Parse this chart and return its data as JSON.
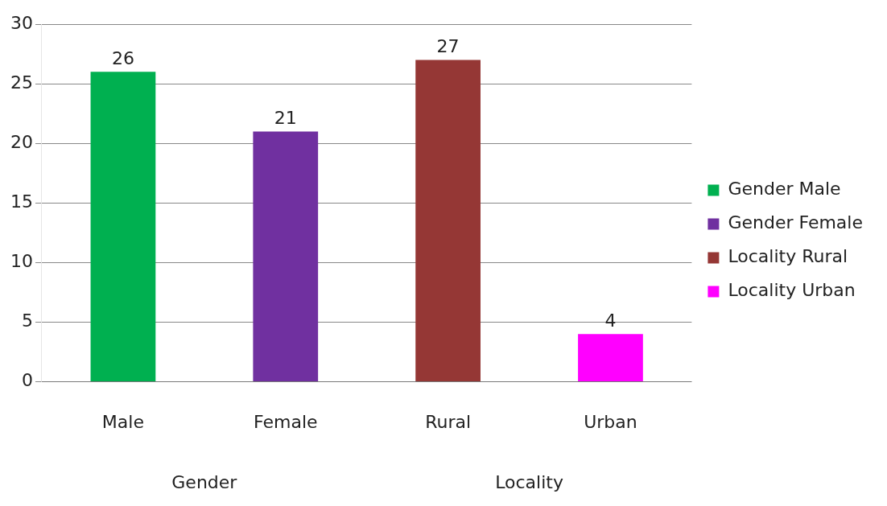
{
  "chart_data": {
    "type": "bar",
    "categories": [
      "Male",
      "Female",
      "Rural",
      "Urban"
    ],
    "series": [
      {
        "name": "Gender Male",
        "color": "#00b050",
        "values": [
          26,
          null,
          null,
          null
        ]
      },
      {
        "name": "Gender Female",
        "color": "#7030a0",
        "values": [
          null,
          21,
          null,
          null
        ]
      },
      {
        "name": "Locality Rural",
        "color": "#953735",
        "values": [
          null,
          null,
          27,
          null
        ]
      },
      {
        "name": "Locality Urban",
        "color": "#ff00ff",
        "values": [
          null,
          null,
          null,
          4
        ]
      }
    ],
    "stacked": true,
    "ylim": [
      0,
      30
    ],
    "yticks": [
      0,
      5,
      10,
      15,
      20,
      25,
      30
    ],
    "grid": "y",
    "legend": "right",
    "data_labels": true,
    "annotations": [
      "Gender",
      "Locality"
    ]
  }
}
